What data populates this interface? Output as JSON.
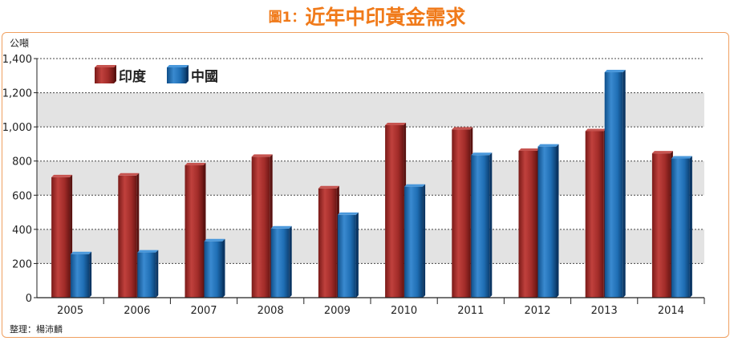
{
  "title": {
    "prefix": "圖1：",
    "main": "近年中印黃金需求"
  },
  "source_note": "整理：楊沛麟",
  "colors": {
    "title": "#f07a1a",
    "india": "#a52a2a",
    "china": "#1f6eb4",
    "band_gray": "#e3e3e3",
    "frame": "#f0a060"
  },
  "chart_data": {
    "type": "bar",
    "ylabel": "公噸",
    "ylim": [
      0,
      1400
    ],
    "yticks": [
      "0",
      "200",
      "400",
      "600",
      "800",
      "1,000",
      "1,200",
      "1,400"
    ],
    "ytick_values": [
      0,
      200,
      400,
      600,
      800,
      1000,
      1200,
      1400
    ],
    "categories": [
      "2005",
      "2006",
      "2007",
      "2008",
      "2009",
      "2010",
      "2011",
      "2012",
      "2013",
      "2014"
    ],
    "legend_position": "top-left",
    "grid": "dashed horizontal, alternating gray bands",
    "series": [
      {
        "name": "印度",
        "color": "#a52a2a",
        "values": [
          705,
          715,
          775,
          825,
          640,
          1010,
          985,
          860,
          975,
          845
        ]
      },
      {
        "name": "中國",
        "color": "#1f6eb4",
        "values": [
          255,
          265,
          330,
          405,
          485,
          650,
          835,
          885,
          1320,
          815
        ]
      }
    ]
  }
}
